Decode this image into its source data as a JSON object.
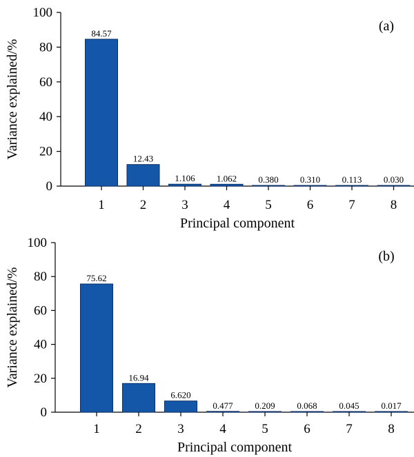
{
  "chart_data": [
    {
      "type": "bar",
      "panel_label": "(a)",
      "categories": [
        "1",
        "2",
        "3",
        "4",
        "5",
        "6",
        "7",
        "8"
      ],
      "values": [
        84.57,
        12.43,
        1.106,
        1.062,
        0.38,
        0.31,
        0.113,
        0.03
      ],
      "data_labels": [
        "84.57",
        "12.43",
        "1.106",
        "1.062",
        "0.380",
        "0.310",
        "0.113",
        "0.030"
      ],
      "xlabel": "Principal component",
      "ylabel": "Variance explained/%",
      "ylim": [
        0,
        100
      ],
      "yticks": [
        "0",
        "20",
        "40",
        "60",
        "80",
        "100"
      ],
      "bar_color": "#1457a8",
      "grid": false
    },
    {
      "type": "bar",
      "panel_label": "(b)",
      "categories": [
        "1",
        "2",
        "3",
        "4",
        "5",
        "6",
        "7",
        "8"
      ],
      "values": [
        75.62,
        16.94,
        6.62,
        0.477,
        0.209,
        0.068,
        0.045,
        0.017
      ],
      "data_labels": [
        "75.62",
        "16.94",
        "6.620",
        "0.477",
        "0.209",
        "0.068",
        "0.045",
        "0.017"
      ],
      "xlabel": "Principal component",
      "ylabel": "Variance explained/%",
      "ylim": [
        0,
        100
      ],
      "yticks": [
        "0",
        "20",
        "40",
        "60",
        "80",
        "100"
      ],
      "bar_color": "#1457a8",
      "grid": false
    }
  ]
}
